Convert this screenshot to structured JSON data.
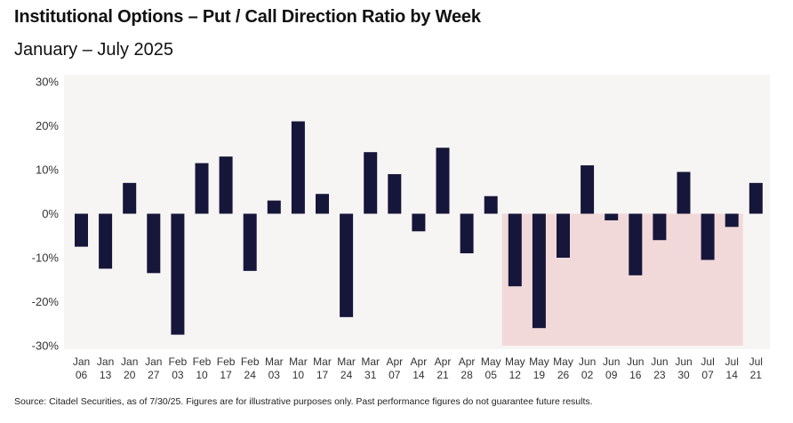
{
  "title": "Institutional Options – Put / Call Direction Ratio by Week",
  "subtitle": "January – July 2025",
  "source_note": "Source: Citadel Securities, as of 7/30/25. Figures are for illustrative purposes only. Past performance figures do not guarantee future results.",
  "colors": {
    "bar": "#16163a",
    "plot_background": "#f7f5f4",
    "highlight": "#f2d9d9"
  },
  "chart_data": {
    "type": "bar",
    "title": "Institutional Options – Put / Call Direction Ratio by Week",
    "subtitle": "January – July 2025",
    "xlabel": "",
    "ylabel": "",
    "ylim": [
      -30,
      30
    ],
    "y_ticks": [
      30,
      20,
      10,
      0,
      -10,
      -20,
      -30
    ],
    "y_tick_labels": [
      "30%",
      "20%",
      "10%",
      "0%",
      "-10%",
      "-20%",
      "-30%"
    ],
    "grid": false,
    "legend": "none",
    "categories": [
      [
        "Jan",
        "06"
      ],
      [
        "Jan",
        "13"
      ],
      [
        "Jan",
        "20"
      ],
      [
        "Jan",
        "27"
      ],
      [
        "Feb",
        "03"
      ],
      [
        "Feb",
        "10"
      ],
      [
        "Feb",
        "17"
      ],
      [
        "Feb",
        "24"
      ],
      [
        "Mar",
        "03"
      ],
      [
        "Mar",
        "10"
      ],
      [
        "Mar",
        "17"
      ],
      [
        "Mar",
        "24"
      ],
      [
        "Mar",
        "31"
      ],
      [
        "Apr",
        "07"
      ],
      [
        "Apr",
        "14"
      ],
      [
        "Apr",
        "21"
      ],
      [
        "Apr",
        "28"
      ],
      [
        "May",
        "05"
      ],
      [
        "May",
        "12"
      ],
      [
        "May",
        "19"
      ],
      [
        "May",
        "26"
      ],
      [
        "Jun",
        "02"
      ],
      [
        "Jun",
        "09"
      ],
      [
        "Jun",
        "16"
      ],
      [
        "Jun",
        "23"
      ],
      [
        "Jun",
        "30"
      ],
      [
        "Jul",
        "07"
      ],
      [
        "Jul",
        "14"
      ],
      [
        "Jul",
        "21"
      ]
    ],
    "values": [
      -7.5,
      -12.5,
      7,
      -13.5,
      -27.5,
      11.5,
      13,
      -13,
      3,
      21,
      4.5,
      -23.5,
      14,
      9,
      -4,
      15,
      -9,
      4,
      -16.5,
      -26,
      -10,
      11,
      -1.5,
      -14,
      -6,
      9.5,
      -10.5,
      -3,
      7
    ],
    "highlight_range": {
      "from_category": "May 12",
      "to_category": "Jul 14",
      "y_from": -30,
      "y_to": 0
    }
  }
}
